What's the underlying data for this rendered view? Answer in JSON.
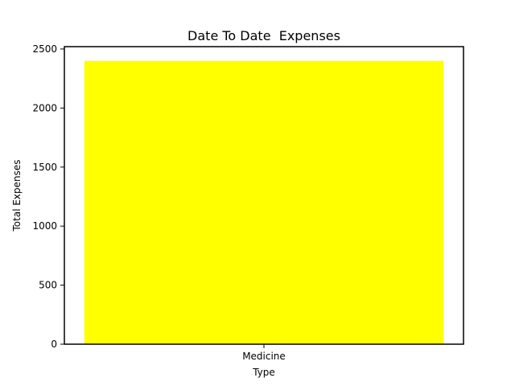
{
  "chart_data": {
    "type": "bar",
    "title": "Date To Date  Expenses",
    "xlabel": "Type",
    "ylabel": "Total Expenses",
    "categories": [
      "Medicine"
    ],
    "values": [
      2400
    ],
    "ylim": [
      0,
      2520
    ],
    "yticks": [
      0,
      500,
      1000,
      1500,
      2000,
      2500
    ],
    "bar_color": "#ffff00",
    "grid": false
  }
}
